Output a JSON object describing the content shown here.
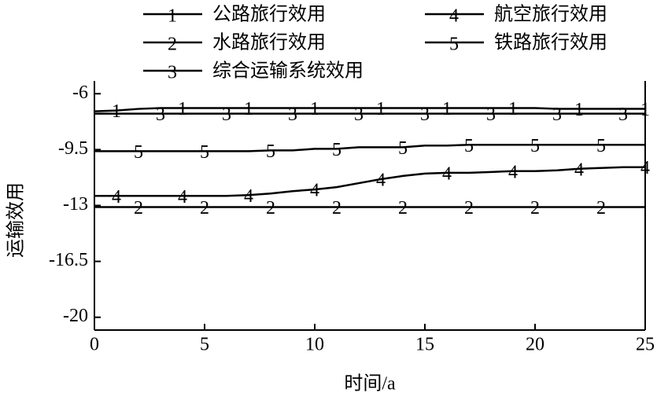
{
  "chart_data": {
    "type": "line",
    "x_label": "时间/a",
    "y_label": "运输效用",
    "x": [
      0,
      1,
      2,
      3,
      4,
      5,
      6,
      7,
      8,
      9,
      10,
      11,
      12,
      13,
      14,
      15,
      16,
      17,
      18,
      19,
      20,
      21,
      22,
      23,
      24,
      25
    ],
    "series": [
      {
        "marker": "1",
        "name": "公路旅行效用",
        "color": "#000000",
        "values": [
          -7.1,
          -7.05,
          -6.95,
          -6.9,
          -6.9,
          -6.9,
          -6.9,
          -6.9,
          -6.9,
          -6.9,
          -6.9,
          -6.9,
          -6.9,
          -6.9,
          -6.9,
          -6.9,
          -6.9,
          -6.9,
          -6.9,
          -6.9,
          -6.9,
          -6.95,
          -6.95,
          -6.95,
          -6.95,
          -6.95
        ]
      },
      {
        "marker": "2",
        "name": "水路旅行效用",
        "color": "#000000",
        "values": [
          -13.1,
          -13.1,
          -13.1,
          -13.1,
          -13.1,
          -13.1,
          -13.1,
          -13.1,
          -13.1,
          -13.1,
          -13.1,
          -13.1,
          -13.1,
          -13.1,
          -13.1,
          -13.1,
          -13.1,
          -13.1,
          -13.1,
          -13.1,
          -13.1,
          -13.1,
          -13.1,
          -13.1,
          -13.1,
          -13.1
        ]
      },
      {
        "marker": "3",
        "name": "综合运输系统效用",
        "color": "#000000",
        "values": [
          -7.25,
          -7.25,
          -7.25,
          -7.25,
          -7.25,
          -7.25,
          -7.25,
          -7.25,
          -7.25,
          -7.25,
          -7.25,
          -7.25,
          -7.25,
          -7.25,
          -7.25,
          -7.25,
          -7.25,
          -7.25,
          -7.25,
          -7.25,
          -7.25,
          -7.25,
          -7.25,
          -7.25,
          -7.25,
          -7.25
        ]
      },
      {
        "marker": "4",
        "name": "航空旅行效用",
        "color": "#000000",
        "values": [
          -12.4,
          -12.4,
          -12.4,
          -12.4,
          -12.4,
          -12.4,
          -12.4,
          -12.35,
          -12.25,
          -12.1,
          -12.0,
          -11.85,
          -11.6,
          -11.35,
          -11.15,
          -11.0,
          -10.95,
          -10.95,
          -10.9,
          -10.85,
          -10.85,
          -10.8,
          -10.7,
          -10.65,
          -10.6,
          -10.6
        ]
      },
      {
        "marker": "5",
        "name": "铁路旅行效用",
        "color": "#000000",
        "values": [
          -9.6,
          -9.6,
          -9.6,
          -9.6,
          -9.6,
          -9.6,
          -9.6,
          -9.6,
          -9.55,
          -9.55,
          -9.45,
          -9.45,
          -9.35,
          -9.35,
          -9.35,
          -9.25,
          -9.25,
          -9.2,
          -9.2,
          -9.2,
          -9.2,
          -9.2,
          -9.2,
          -9.2,
          -9.2,
          -9.2
        ]
      }
    ],
    "xlim": [
      0,
      25
    ],
    "xticks": [
      0,
      5,
      10,
      15,
      20,
      25
    ],
    "ylim": [
      -20.8,
      -5.2
    ],
    "yticks": [
      -6,
      -9.5,
      -13,
      -16.5,
      -20
    ],
    "grid": false
  }
}
